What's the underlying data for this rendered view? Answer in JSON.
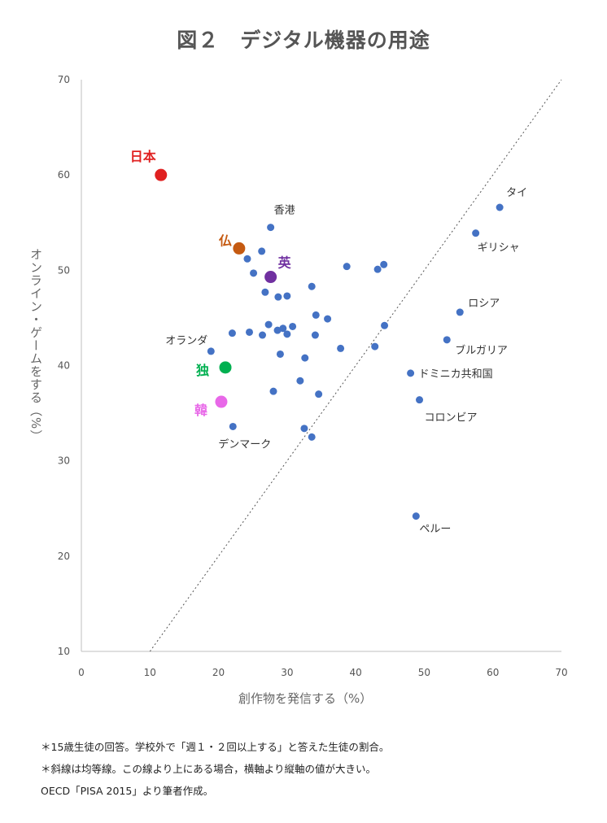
{
  "chart_data": {
    "type": "scatter",
    "title": "図２　デジタル機器の用途",
    "xlabel": "創作物を発信する（%）",
    "ylabel": "オンライン・ゲームをする（%）",
    "xlim": [
      0,
      70
    ],
    "ylim": [
      10,
      70
    ],
    "xticks": [
      0,
      10,
      20,
      30,
      40,
      50,
      60,
      70
    ],
    "yticks": [
      10,
      20,
      30,
      40,
      50,
      60,
      70
    ],
    "grid": false,
    "reference_line": {
      "style": "dotted",
      "x": [
        10,
        70
      ],
      "y": [
        10,
        70
      ]
    },
    "points": [
      {
        "x": 61.0,
        "y": 56.6,
        "label": "タイ"
      },
      {
        "x": 57.5,
        "y": 53.9,
        "label": "ギリシャ"
      },
      {
        "x": 55.2,
        "y": 45.6,
        "label": "ロシア"
      },
      {
        "x": 53.3,
        "y": 42.7,
        "label": "ブルガリア"
      },
      {
        "x": 48.0,
        "y": 39.2,
        "label": "ドミニカ共和国"
      },
      {
        "x": 49.3,
        "y": 36.4,
        "label": "コロンビア"
      },
      {
        "x": 48.8,
        "y": 24.2,
        "label": "ペルー"
      },
      {
        "x": 27.6,
        "y": 54.5,
        "label": "香港"
      },
      {
        "x": 18.9,
        "y": 41.5,
        "label": "オランダ"
      },
      {
        "x": 22.1,
        "y": 33.6,
        "label": "デンマーク"
      },
      {
        "x": 26.3,
        "y": 52.0
      },
      {
        "x": 24.2,
        "y": 51.2
      },
      {
        "x": 25.1,
        "y": 49.7
      },
      {
        "x": 26.8,
        "y": 47.7
      },
      {
        "x": 28.7,
        "y": 47.2
      },
      {
        "x": 30.0,
        "y": 47.3
      },
      {
        "x": 33.6,
        "y": 48.3
      },
      {
        "x": 38.7,
        "y": 50.4
      },
      {
        "x": 43.2,
        "y": 50.1
      },
      {
        "x": 44.1,
        "y": 50.6
      },
      {
        "x": 34.2,
        "y": 45.3
      },
      {
        "x": 35.9,
        "y": 44.9
      },
      {
        "x": 27.3,
        "y": 44.3
      },
      {
        "x": 28.6,
        "y": 43.7
      },
      {
        "x": 29.4,
        "y": 43.9
      },
      {
        "x": 30.0,
        "y": 43.3
      },
      {
        "x": 30.8,
        "y": 44.1
      },
      {
        "x": 34.1,
        "y": 43.2
      },
      {
        "x": 26.4,
        "y": 43.2
      },
      {
        "x": 24.5,
        "y": 43.5
      },
      {
        "x": 22.0,
        "y": 43.4
      },
      {
        "x": 29.0,
        "y": 41.2
      },
      {
        "x": 32.6,
        "y": 40.8
      },
      {
        "x": 37.8,
        "y": 41.8
      },
      {
        "x": 42.8,
        "y": 42.0
      },
      {
        "x": 44.2,
        "y": 44.2
      },
      {
        "x": 31.9,
        "y": 38.4
      },
      {
        "x": 28.0,
        "y": 37.3
      },
      {
        "x": 34.6,
        "y": 37.0
      },
      {
        "x": 32.5,
        "y": 33.4
      },
      {
        "x": 33.6,
        "y": 32.5
      }
    ],
    "highlighted": [
      {
        "x": 11.6,
        "y": 60.0,
        "label": "日本",
        "color": "#e02020"
      },
      {
        "x": 23.0,
        "y": 52.3,
        "label": "仏",
        "color": "#c55a11"
      },
      {
        "x": 27.6,
        "y": 49.3,
        "label": "英",
        "color": "#7030a0"
      },
      {
        "x": 21.0,
        "y": 39.8,
        "label": "独",
        "color": "#00b050"
      },
      {
        "x": 20.4,
        "y": 36.2,
        "label": "韓",
        "color": "#e868e8"
      }
    ],
    "point_color": "#4472c4"
  },
  "notes": [
    "＊15歳生徒の回答。学校外で「週１・２回以上する」と答えた生徒の割合。",
    "＊斜線は均等線。この線より上にある場合，横軸より縦軸の値が大きい。",
    "OECD「PISA 2015」より筆者作成。"
  ]
}
